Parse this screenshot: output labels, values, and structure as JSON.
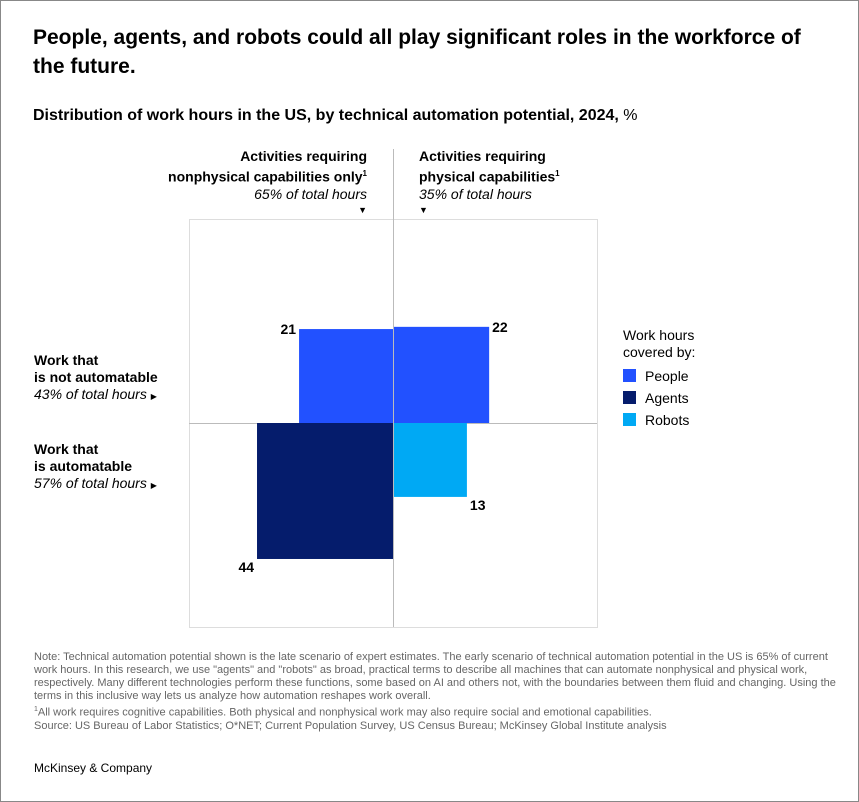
{
  "title": "People, agents, and robots could all play significant roles in the workforce of the future.",
  "subtitle_bold": "Distribution of work hours in the US, by technical automation potential, 2024,",
  "subtitle_unit": " %",
  "chart_data": {
    "type": "quadrant-squares",
    "columns": [
      {
        "label_line1": "Activities requiring",
        "label_line2": "nonphysical capabilities only",
        "footnote": "1",
        "share": "65% of total hours"
      },
      {
        "label_line1": "Activities requiring",
        "label_line2": "physical capabilities",
        "footnote": "1",
        "share": "35% of total hours"
      }
    ],
    "rows": [
      {
        "label_line1": "Work that",
        "label_line2": "is not automatable",
        "share": "43% of total hours"
      },
      {
        "label_line1": "Work that",
        "label_line2": "is automatable",
        "share": "57% of total hours"
      }
    ],
    "cells": [
      {
        "row": "not automatable",
        "column": "nonphysical",
        "series": "People",
        "value": 21
      },
      {
        "row": "not automatable",
        "column": "physical",
        "series": "People",
        "value": 22
      },
      {
        "row": "automatable",
        "column": "nonphysical",
        "series": "Agents",
        "value": 44
      },
      {
        "row": "automatable",
        "column": "physical",
        "series": "Robots",
        "value": 13
      }
    ],
    "legend_title_line1": "Work hours",
    "legend_title_line2": "covered by:",
    "legend": [
      {
        "name": "People",
        "color": "#2251ff"
      },
      {
        "name": "Agents",
        "color": "#051c6c"
      },
      {
        "name": "Robots",
        "color": "#00a9f4"
      }
    ],
    "legend_position": "right"
  },
  "notes": {
    "note": "Note: Technical automation potential shown is the late scenario of expert estimates. The early scenario of technical automation potential in the US is 65% of current work hours. In this research, we use \"agents\" and \"robots\" as broad, practical terms to describe all machines that can automate nonphysical and physical work, respectively. Many different technologies perform these functions, some based on AI and others not, with the boundaries between them fluid and changing. Using the terms in this inclusive way lets us analyze how automation reshapes work overall.",
    "footnote_mark": "1",
    "footnote": "All work requires cognitive capabilities. Both physical and nonphysical work may also require social and emotional capabilities.",
    "source": "Source: US Bureau of Labor Statistics; O*NET; Current Population Survey, US Census Bureau; McKinsey Global Institute analysis"
  },
  "brand": "McKinsey & Company"
}
